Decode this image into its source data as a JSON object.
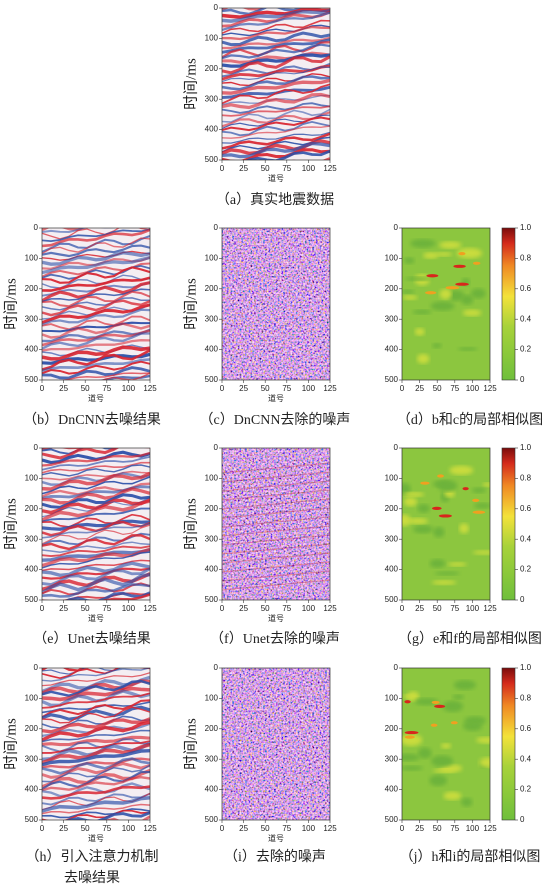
{
  "figure": {
    "ylabel": "时间/ms",
    "xlabel": "道号",
    "yticks": [
      0,
      100,
      200,
      300,
      400,
      500
    ],
    "xticks": [
      0,
      25,
      50,
      75,
      100,
      125
    ],
    "colorbar_ticks": [
      "0",
      "0.2",
      "0.4",
      "0.6",
      "0.8",
      "1.0"
    ],
    "panels": [
      {
        "caption": [
          "（a）真实地震数据"
        ]
      },
      {
        "caption": [
          "（b）DnCNN去噪结果"
        ]
      },
      {
        "caption": [
          "（c）DnCNN去除的噪声"
        ]
      },
      {
        "caption": [
          "（d）b和c的局部相似图"
        ]
      },
      {
        "caption": [
          "（e）Unet去噪结果"
        ]
      },
      {
        "caption": [
          "（f）Unet去除的噪声"
        ]
      },
      {
        "caption": [
          "（g）e和f的局部相似图"
        ]
      },
      {
        "caption": [
          "（h）引入注意力机制",
          "去噪结果"
        ]
      },
      {
        "caption": [
          "（i）去除的噪声"
        ]
      },
      {
        "caption": [
          "（j）h和i的局部相似图"
        ]
      }
    ]
  }
}
